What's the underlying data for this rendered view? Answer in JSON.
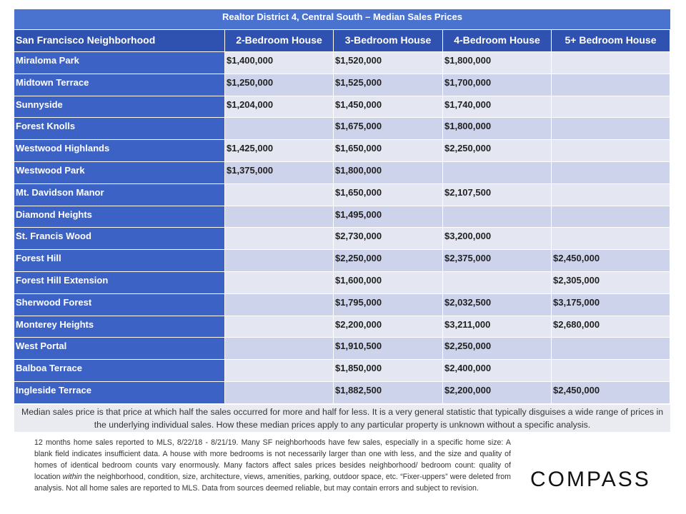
{
  "title": "Realtor District 4, Central South – Median Sales Prices",
  "header": [
    "San Francisco Neighborhood",
    "2-Bedroom House",
    "3-Bedroom House",
    "4-Bedroom House",
    "5+ Bedroom House"
  ],
  "rows": [
    [
      "Miraloma Park",
      "$1,400,000",
      "$1,520,000",
      "$1,800,000",
      null
    ],
    [
      "Midtown Terrace",
      "$1,250,000",
      "$1,525,000",
      "$1,700,000",
      null
    ],
    [
      "Sunnyside",
      "$1,204,000",
      "$1,450,000",
      "$1,740,000",
      null
    ],
    [
      "Forest Knolls",
      null,
      "$1,675,000",
      "$1,800,000",
      null
    ],
    [
      "Westwood Highlands",
      "$1,425,000",
      "$1,650,000",
      "$2,250,000",
      null
    ],
    [
      "Westwood Park",
      "$1,375,000",
      "$1,800,000",
      null,
      null
    ],
    [
      "Mt. Davidson Manor",
      null,
      "$1,650,000",
      "$2,107,500",
      null
    ],
    [
      "Diamond Heights",
      null,
      "$1,495,000",
      null,
      null
    ],
    [
      "St. Francis Wood",
      null,
      "$2,730,000",
      "$3,200,000",
      null
    ],
    [
      "Forest Hill",
      null,
      "$2,250,000",
      "$2,375,000",
      "$2,450,000"
    ],
    [
      "Forest Hill Extension",
      null,
      "$1,600,000",
      null,
      "$2,305,000"
    ],
    [
      "Sherwood Forest",
      null,
      "$1,795,000",
      "$2,032,500",
      "$3,175,000"
    ],
    [
      "Monterey Heights",
      null,
      "$2,200,000",
      "$3,211,000",
      "$2,680,000"
    ],
    [
      "West Portal",
      null,
      "$1,910,500",
      "$2,250,000",
      null
    ],
    [
      "Balboa Terrace",
      null,
      "$1,850,000",
      "$2,400,000",
      null
    ],
    [
      "Ingleside Terrace",
      null,
      "$1,882,500",
      "$2,200,000",
      "$2,450,000"
    ]
  ],
  "note": "Median sales price is that price at which half the sales occurred for more and half for less. It is a very general statistic that typically disguises a wide range of prices in the underlying individual sales. How these median prices apply to any particular property is unknown without a specific analysis.",
  "footnote": [
    "12 months home sales reported to MLS, 8/22/18 - 8/21/19. Many SF neighborhoods have few sales, especially in a specific home size: A blank field indicates insufficient data. A house with more bedrooms is not necessarily larger than one with less, and the size and quality of homes of identical bedroom counts vary enormously. Many factors affect sales prices besides neighborhood/ bedroom count: quality of location ",
    "within",
    " the neighborhood, condition, size, architecture, views, amenities, parking, outdoor space, etc. “Fixer-uppers” were deleted from analysis. Not all home sales are reported to MLS. Data from sources deemed reliable, but may contain errors and subject to revision."
  ],
  "logo": "COMPASS"
}
